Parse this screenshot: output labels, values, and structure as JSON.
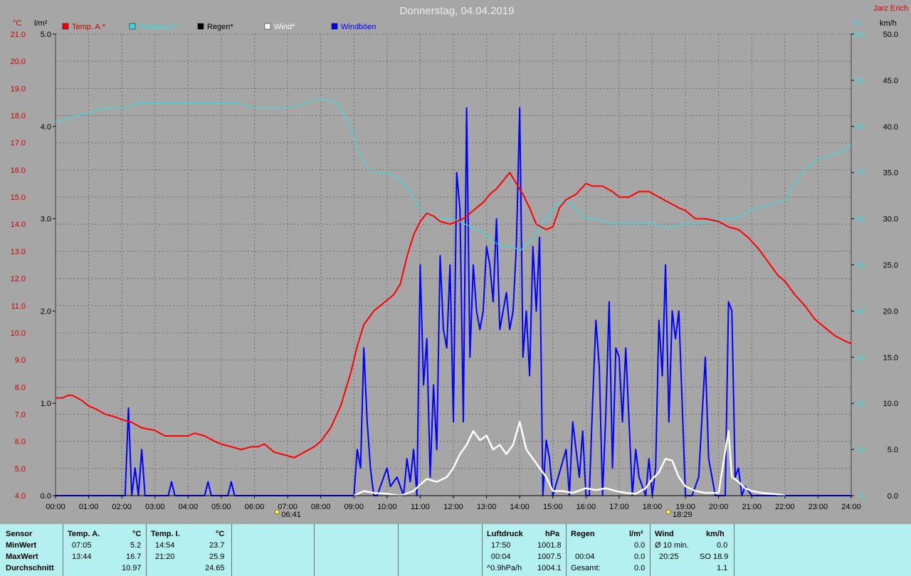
{
  "chart_data": {
    "type": "line",
    "title": "Donnerstag, 04.04.2019",
    "author": "Jarz Erich",
    "y_left_temp": {
      "label": "°C",
      "ylim": [
        4.0,
        21.0
      ],
      "ticks": [
        "4.0",
        "5.0",
        "6.0",
        "7.0",
        "8.0",
        "9.0",
        "10.0",
        "11.0",
        "12.0",
        "13.0",
        "14.0",
        "15.0",
        "16.0",
        "17.0",
        "18.0",
        "19.0",
        "20.0",
        "21.0"
      ]
    },
    "y_left_rain": {
      "label": "l/m²",
      "ylim": [
        0.0,
        5.0
      ],
      "ticks": [
        "0.0",
        "1.0",
        "2.0",
        "3.0",
        "4.0",
        "5.0"
      ]
    },
    "y_right_hum": {
      "label": "%",
      "ylim": [
        0,
        100
      ],
      "ticks": [
        "0",
        "10",
        "20",
        "30",
        "40",
        "50",
        "60",
        "70",
        "80",
        "90",
        "100"
      ]
    },
    "y_right_wind": {
      "label": "km/h",
      "ylim": [
        0.0,
        50.0
      ],
      "ticks": [
        "0.0",
        "5.0",
        "10.0",
        "15.0",
        "20.0",
        "25.0",
        "30.0",
        "35.0",
        "40.0",
        "45.0",
        "50.0"
      ]
    },
    "x_ticks": [
      "00:00",
      "01:00",
      "02:00",
      "03:00",
      "04:00",
      "05:00",
      "06:00",
      "07:00",
      "08:00",
      "09:00",
      "10:00",
      "11:00",
      "12:00",
      "13:00",
      "14:00",
      "15:00",
      "16:00",
      "17:00",
      "18:00",
      "19:00",
      "20:00",
      "21:00",
      "22:00",
      "23:00",
      "24:00"
    ],
    "sunrise": "06:41",
    "sunset": "18:29",
    "grid": true,
    "legend_position": "top-left",
    "series": [
      {
        "name": "Temp. A.*",
        "color": "#ff0000",
        "axis": "temp",
        "x": [
          0.0,
          0.2,
          0.4,
          0.5,
          0.8,
          1.0,
          1.2,
          1.5,
          1.8,
          2.0,
          2.3,
          2.6,
          3.0,
          3.3,
          3.6,
          4.0,
          4.2,
          4.5,
          4.8,
          5.0,
          5.3,
          5.6,
          5.9,
          6.1,
          6.3,
          6.6,
          6.9,
          7.2,
          7.5,
          7.8,
          8.0,
          8.3,
          8.6,
          8.9,
          9.1,
          9.3,
          9.6,
          9.8,
          10.0,
          10.2,
          10.4,
          10.6,
          10.8,
          11.0,
          11.2,
          11.4,
          11.6,
          11.9,
          12.1,
          12.3,
          12.5,
          12.7,
          12.9,
          13.1,
          13.3,
          13.5,
          13.7,
          13.9,
          14.1,
          14.3,
          14.5,
          14.8,
          15.0,
          15.2,
          15.4,
          15.7,
          16.0,
          16.2,
          16.5,
          16.8,
          17.0,
          17.3,
          17.6,
          17.9,
          18.2,
          18.5,
          18.8,
          19.0,
          19.3,
          19.6,
          20.0,
          20.3,
          20.6,
          20.9,
          21.2,
          21.5,
          21.8,
          22.0,
          22.3,
          22.6,
          22.9,
          23.2,
          23.5,
          23.8,
          24.0
        ],
        "values": [
          7.6,
          7.6,
          7.7,
          7.7,
          7.5,
          7.3,
          7.2,
          7.0,
          6.9,
          6.8,
          6.7,
          6.5,
          6.4,
          6.2,
          6.2,
          6.2,
          6.3,
          6.2,
          6.0,
          5.9,
          5.8,
          5.7,
          5.8,
          5.8,
          5.9,
          5.6,
          5.5,
          5.4,
          5.6,
          5.8,
          6.0,
          6.5,
          7.3,
          8.5,
          9.5,
          10.3,
          10.8,
          11.0,
          11.2,
          11.4,
          11.8,
          12.8,
          13.6,
          14.1,
          14.4,
          14.3,
          14.1,
          14.0,
          14.1,
          14.2,
          14.4,
          14.6,
          14.8,
          15.1,
          15.3,
          15.6,
          15.9,
          15.5,
          15.1,
          14.6,
          14.0,
          13.8,
          13.9,
          14.6,
          14.9,
          15.1,
          15.5,
          15.4,
          15.4,
          15.2,
          15.0,
          15.0,
          15.2,
          15.2,
          15.0,
          14.8,
          14.6,
          14.5,
          14.2,
          14.2,
          14.1,
          13.9,
          13.8,
          13.5,
          13.1,
          12.6,
          12.1,
          11.9,
          11.4,
          11.0,
          10.5,
          10.2,
          9.9,
          9.7,
          9.6
        ]
      },
      {
        "name": "Relative F.*",
        "color": "#33dddd",
        "axis": "hum",
        "x": [
          0.0,
          0.5,
          1.0,
          1.5,
          2.0,
          2.5,
          3.0,
          3.5,
          4.0,
          4.5,
          5.0,
          5.5,
          6.0,
          6.3,
          6.6,
          7.0,
          7.5,
          8.0,
          8.5,
          8.9,
          9.1,
          9.4,
          9.7,
          10.0,
          10.3,
          10.6,
          10.9,
          11.2,
          11.6,
          12.0,
          12.3,
          12.6,
          12.9,
          13.2,
          13.5,
          13.8,
          14.0,
          14.3,
          14.6,
          14.9,
          15.1,
          15.4,
          15.7,
          16.0,
          16.3,
          16.7,
          17.0,
          17.5,
          18.0,
          18.5,
          19.0,
          19.5,
          20.0,
          20.5,
          21.0,
          21.5,
          22.0,
          22.5,
          23.0,
          23.5,
          23.8,
          24.0
        ],
        "values": [
          81,
          82,
          83,
          84,
          84,
          85,
          85,
          85,
          85,
          85,
          85,
          85,
          84,
          84,
          84,
          84,
          85,
          86,
          85,
          80,
          75,
          71,
          70,
          70,
          69,
          67,
          63,
          61,
          60,
          60,
          59,
          58,
          57,
          55,
          54,
          54,
          53,
          55,
          58,
          61,
          63,
          64,
          62,
          60,
          60,
          59,
          59,
          59,
          59,
          58,
          59,
          59,
          60,
          60,
          62,
          63,
          64,
          70,
          73,
          74,
          75,
          76
        ]
      },
      {
        "name": "Regen*",
        "color": "#000000",
        "axis": "rain",
        "x": [
          0.0,
          24.0
        ],
        "values": [
          0.0,
          0.0
        ]
      },
      {
        "name": "Wind*",
        "color": "#ffffff",
        "axis": "wind",
        "x": [
          9.0,
          9.3,
          9.6,
          10.0,
          10.4,
          10.8,
          11.0,
          11.2,
          11.5,
          11.8,
          12.0,
          12.2,
          12.4,
          12.6,
          12.8,
          13.0,
          13.2,
          13.4,
          13.6,
          13.8,
          14.0,
          14.2,
          14.5,
          14.8,
          15.0,
          15.3,
          15.6,
          16.0,
          16.3,
          16.6,
          16.9,
          17.2,
          17.5,
          17.8,
          18.0,
          18.2,
          18.4,
          18.6,
          18.8,
          19.0,
          19.3,
          19.6,
          20.0,
          20.3,
          20.4,
          20.6,
          20.8,
          21.0,
          21.3,
          21.6,
          21.9,
          22.0
        ],
        "values": [
          0.0,
          0.5,
          0.3,
          0.2,
          0.0,
          0.5,
          1.2,
          1.8,
          1.5,
          2.0,
          3.0,
          4.5,
          5.5,
          7.0,
          6.0,
          6.5,
          5.0,
          5.5,
          4.5,
          5.5,
          8.0,
          5.0,
          3.5,
          2.0,
          0.5,
          0.5,
          0.3,
          0.8,
          0.6,
          0.8,
          0.5,
          0.3,
          0.2,
          0.8,
          1.8,
          2.5,
          4.0,
          3.8,
          2.0,
          1.0,
          0.5,
          0.3,
          0.3,
          7.0,
          2.0,
          1.5,
          0.8,
          0.5,
          0.3,
          0.2,
          0.1,
          0.0
        ]
      },
      {
        "name": "Windböen",
        "color": "#0000ff",
        "axis": "wind",
        "x": [
          0.0,
          2.1,
          2.2,
          2.3,
          2.4,
          2.5,
          2.6,
          2.7,
          2.8,
          3.4,
          3.5,
          3.6,
          4.5,
          4.6,
          4.7,
          5.2,
          5.3,
          5.4,
          9.0,
          9.1,
          9.2,
          9.3,
          9.4,
          9.5,
          9.6,
          9.7,
          10.0,
          10.1,
          10.3,
          10.5,
          10.6,
          10.7,
          10.8,
          10.9,
          11.0,
          11.1,
          11.2,
          11.3,
          11.4,
          11.5,
          11.6,
          11.7,
          11.8,
          11.9,
          12.0,
          12.1,
          12.2,
          12.3,
          12.4,
          12.5,
          12.6,
          12.7,
          12.8,
          12.9,
          13.0,
          13.1,
          13.2,
          13.3,
          13.4,
          13.5,
          13.6,
          13.7,
          13.8,
          13.9,
          14.0,
          14.1,
          14.2,
          14.3,
          14.4,
          14.5,
          14.6,
          14.7,
          14.8,
          14.9,
          15.0,
          15.4,
          15.5,
          15.6,
          15.8,
          15.9,
          16.0,
          16.1,
          16.2,
          16.3,
          16.4,
          16.5,
          16.6,
          16.7,
          16.8,
          16.9,
          17.0,
          17.1,
          17.2,
          17.4,
          17.5,
          17.6,
          17.8,
          17.9,
          18.0,
          18.1,
          18.2,
          18.3,
          18.4,
          18.5,
          18.6,
          18.7,
          18.8,
          19.0,
          19.2,
          19.4,
          19.6,
          19.7,
          19.8,
          19.9,
          20.0,
          20.2,
          20.3,
          20.4,
          20.5,
          20.6,
          20.7,
          20.8,
          21.0,
          24.0
        ],
        "values": [
          0.0,
          0.0,
          9.5,
          0.0,
          3.0,
          0.0,
          5.0,
          0.0,
          0.0,
          0.0,
          1.5,
          0.0,
          0.0,
          1.5,
          0.0,
          0.0,
          1.5,
          0.0,
          0.0,
          5.0,
          3.0,
          16.0,
          8.0,
          3.0,
          0.0,
          0.0,
          3.0,
          1.0,
          2.0,
          0.0,
          4.0,
          1.5,
          5.0,
          0.0,
          25.0,
          12.0,
          17.0,
          2.0,
          12.0,
          5.0,
          26.0,
          18.0,
          16.0,
          25.0,
          8.0,
          35.0,
          31.0,
          8.0,
          42.0,
          15.0,
          25.0,
          20.0,
          18.0,
          20.0,
          27.0,
          25.0,
          21.0,
          30.0,
          18.0,
          20.0,
          22.0,
          18.0,
          20.0,
          27.0,
          42.0,
          15.0,
          20.0,
          13.0,
          27.0,
          20.0,
          28.0,
          0.0,
          6.0,
          4.0,
          0.0,
          5.0,
          0.0,
          8.0,
          2.0,
          7.0,
          0.0,
          0.0,
          10.0,
          19.0,
          14.0,
          0.0,
          9.0,
          21.0,
          3.0,
          16.0,
          15.0,
          8.0,
          16.0,
          0.0,
          5.0,
          2.0,
          0.0,
          4.0,
          0.0,
          3.0,
          19.0,
          13.0,
          25.0,
          8.0,
          20.0,
          17.0,
          20.0,
          0.0,
          0.0,
          2.0,
          15.0,
          4.0,
          2.0,
          0.0,
          0.0,
          0.0,
          21.0,
          20.0,
          2.0,
          3.0,
          0.0,
          1.0,
          0.0,
          0.0
        ]
      }
    ]
  },
  "stats": {
    "sensor": {
      "title": "Sensor",
      "min": "MinWert",
      "max": "MaxWert",
      "avg": "Durchschnitt"
    },
    "temp_a": {
      "title": "Temp. A.",
      "unit": "°C",
      "min_time": "07:05",
      "min_val": "5.2",
      "max_time": "13:44",
      "max_val": "16.7",
      "avg": "10.97"
    },
    "temp_i": {
      "title": "Temp. I.",
      "unit": "°C",
      "min_time": "14:54",
      "min_val": "23.7",
      "max_time": "21:20",
      "max_val": "25.9",
      "avg": "24.65"
    },
    "pressure": {
      "title": "Luftdruck",
      "unit": "hPa",
      "min_time": "17:50",
      "min_val": "1001.8",
      "max_time": "00:04",
      "max_val": "1007.5",
      "trend": "^0.9hPa/h",
      "current": "1004.1"
    },
    "rain": {
      "title": "Regen",
      "unit": "l/m²",
      "min_time": "00:04",
      "min_val": "0.0",
      "gesamt_label": "Gesamt:",
      "gesamt_val": "0.0",
      "first_val": "0.0"
    },
    "wind": {
      "title": "Wind",
      "unit": "km/h",
      "row1_label": "Ø 10 min.",
      "row1_val": "0.0",
      "row2_time": "20:25",
      "row2_val": "SO 18.9",
      "row3_val": "1.1"
    }
  }
}
